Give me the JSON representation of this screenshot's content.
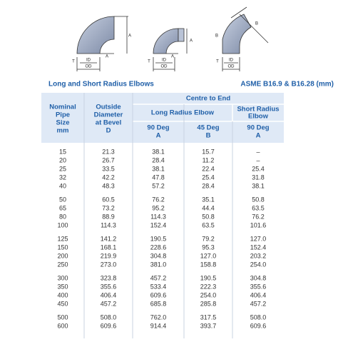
{
  "diagrams": [
    {
      "labels": [
        "A",
        "A",
        "T",
        "ID",
        "OD"
      ]
    },
    {
      "labels": [
        "A",
        "A",
        "T",
        "ID",
        "OD"
      ]
    },
    {
      "labels": [
        "B",
        "B",
        "T",
        "ID",
        "OD"
      ]
    }
  ],
  "header": {
    "title": "Long and Short Radius Elbows",
    "standard": "ASME B16.9 & B16.28 (mm)"
  },
  "table": {
    "columns": {
      "nominal": [
        "Nominal",
        "Pipe",
        "Size",
        "mm"
      ],
      "outside": [
        "Outside",
        "Diameter",
        "at Bevel",
        "D"
      ],
      "centre": "Centre to End",
      "long": "Long Radius Elbow",
      "short": [
        "Short Radius",
        "Elbow"
      ],
      "sub": [
        [
          "90 Deg",
          "A"
        ],
        [
          "45 Deg",
          "B"
        ],
        [
          "90 Deg",
          "A"
        ]
      ]
    },
    "groups": [
      [
        [
          "15",
          "21.3",
          "38.1",
          "15.7",
          "–"
        ],
        [
          "20",
          "26.7",
          "28.4",
          "11.2",
          "–"
        ],
        [
          "25",
          "33.5",
          "38.1",
          "22.4",
          "25.4"
        ],
        [
          "32",
          "42.2",
          "47.8",
          "25.4",
          "31.8"
        ],
        [
          "40",
          "48.3",
          "57.2",
          "28.4",
          "38.1"
        ]
      ],
      [
        [
          "50",
          "60.5",
          "76.2",
          "35.1",
          "50.8"
        ],
        [
          "65",
          "73.2",
          "95.2",
          "44.4",
          "63.5"
        ],
        [
          "80",
          "88.9",
          "114.3",
          "50.8",
          "76.2"
        ],
        [
          "100",
          "114.3",
          "152.4",
          "63.5",
          "101.6"
        ]
      ],
      [
        [
          "125",
          "141.2",
          "190.5",
          "79.2",
          "127.0"
        ],
        [
          "150",
          "168.1",
          "228.6",
          "95.3",
          "152.4"
        ],
        [
          "200",
          "219.9",
          "304.8",
          "127.0",
          "203.2"
        ],
        [
          "250",
          "273.0",
          "381.0",
          "158.8",
          "254.0"
        ]
      ],
      [
        [
          "300",
          "323.8",
          "457.2",
          "190.5",
          "304.8"
        ],
        [
          "350",
          "355.6",
          "533.4",
          "222.3",
          "355.6"
        ],
        [
          "400",
          "406.4",
          "609.6",
          "254.0",
          "406.4"
        ],
        [
          "450",
          "457.2",
          "685.8",
          "285.8",
          "457.2"
        ]
      ],
      [
        [
          "500",
          "508.0",
          "762.0",
          "317.5",
          "508.0"
        ],
        [
          "600",
          "609.6",
          "914.4",
          "393.7",
          "609.6"
        ]
      ]
    ]
  }
}
